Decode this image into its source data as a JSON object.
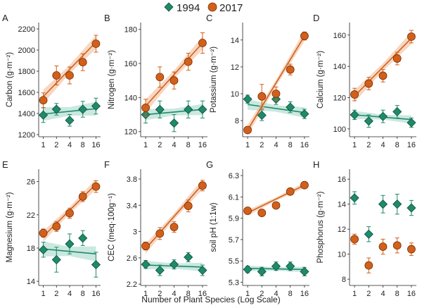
{
  "legend": {
    "items": [
      {
        "label": "1994",
        "color": "#1e8a6a",
        "marker": "diamond"
      },
      {
        "label": "2017",
        "color": "#d2601a",
        "marker": "circle"
      }
    ]
  },
  "x_axis_title": "Number of Plant Species (Log Scale)",
  "colors": {
    "s1994": "#1e8a6a",
    "s2017": "#d2601a",
    "band1994": "#9fd5c4",
    "band2017": "#f0b78f"
  },
  "chart_data": [
    {
      "type": "scatter",
      "panel": "A",
      "ylabel": "Carbon (g·m⁻²)",
      "x": [
        1,
        2,
        4,
        8,
        16
      ],
      "xticks": [
        "1",
        "2",
        "4",
        "8",
        "16"
      ],
      "ylim": [
        1180,
        2260
      ],
      "yticks": [
        1200,
        1400,
        1600,
        1800,
        2000,
        2200
      ],
      "series": [
        {
          "name": "1994",
          "values": [
            1385,
            1440,
            1335,
            1440,
            1470
          ],
          "err": [
            70,
            55,
            55,
            75,
            75
          ],
          "fit": [
            1395,
            1445
          ],
          "ci": 50
        },
        {
          "name": "2017",
          "values": [
            1525,
            1760,
            1760,
            1885,
            2060
          ],
          "err": [
            70,
            90,
            80,
            80,
            80
          ],
          "fit": [
            1560,
            2075
          ],
          "ci": 50
        }
      ]
    },
    {
      "type": "scatter",
      "panel": "B",
      "ylabel": "Nitrogen (g·m⁻²)",
      "x": [
        1,
        2,
        4,
        8,
        16
      ],
      "xticks": [
        "1",
        "2",
        "4",
        "8",
        "16"
      ],
      "ylim": [
        117,
        184
      ],
      "yticks": [
        120,
        140,
        160,
        180
      ],
      "series": [
        {
          "name": "1994",
          "values": [
            130,
            133,
            125,
            133,
            133
          ],
          "err": [
            5,
            5,
            5,
            5,
            5
          ],
          "fit": [
            130,
            133
          ],
          "ci": 2.5
        },
        {
          "name": "2017",
          "values": [
            134,
            152,
            150,
            161,
            172
          ],
          "err": [
            5,
            6,
            5,
            5,
            6
          ],
          "fit": [
            135,
            172
          ],
          "ci": 3
        }
      ]
    },
    {
      "type": "scatter",
      "panel": "C",
      "ylabel": "Potassium (g·m⁻²)",
      "x": [
        1,
        2,
        4,
        8,
        16
      ],
      "xticks": [
        "1",
        "2",
        "4",
        "8",
        "16"
      ],
      "ylim": [
        6.8,
        15.3
      ],
      "yticks": [
        8,
        10,
        12,
        14
      ],
      "series": [
        {
          "name": "1994",
          "values": [
            9.6,
            8.4,
            9.6,
            9.0,
            8.5
          ],
          "err": [
            0.3,
            0.4,
            0.4,
            0.4,
            0.35
          ],
          "fit": [
            9.2,
            8.6
          ],
          "ci": 0.3
        },
        {
          "name": "2017",
          "values": [
            7.3,
            9.8,
            10.0,
            11.8,
            14.3
          ],
          "err": [
            0.2,
            0.9,
            0.5,
            0.4,
            0.3
          ],
          "fit": [
            7.3,
            14.3
          ],
          "ci": 0.3
        }
      ]
    },
    {
      "type": "scatter",
      "panel": "D",
      "ylabel": "Calcium (g·m⁻²)",
      "x": [
        1,
        2,
        4,
        8,
        16
      ],
      "xticks": [
        "1",
        "2",
        "4",
        "8",
        "16"
      ],
      "ylim": [
        95,
        168
      ],
      "yticks": [
        100,
        120,
        140,
        160
      ],
      "series": [
        {
          "name": "1994",
          "values": [
            109,
            105,
            108,
            111,
            104
          ],
          "err": [
            3,
            4,
            4,
            4,
            3
          ],
          "fit": [
            109,
            106
          ],
          "ci": 2
        },
        {
          "name": "2017",
          "values": [
            122,
            129,
            134,
            145,
            159
          ],
          "err": [
            4,
            4,
            4,
            4,
            4
          ],
          "fit": [
            121,
            158
          ],
          "ci": 3
        }
      ]
    },
    {
      "type": "scatter",
      "panel": "E",
      "ylabel": "Magnesium (g·m⁻²)",
      "x": [
        1,
        2,
        4,
        8,
        16
      ],
      "xticks": [
        "1",
        "2",
        "4",
        "8",
        "16"
      ],
      "ylim": [
        13.5,
        27.5
      ],
      "yticks": [
        14,
        18,
        22,
        26
      ],
      "series": [
        {
          "name": "1994",
          "values": [
            17.8,
            16.6,
            18.5,
            19.2,
            16.0
          ],
          "err": [
            0.9,
            1.5,
            1.2,
            0.9,
            1.5
          ],
          "fit": [
            17.9,
            17.3
          ],
          "ci": 0.7
        },
        {
          "name": "2017",
          "values": [
            19.8,
            20.6,
            22.2,
            24.2,
            25.4
          ],
          "err": [
            0.5,
            0.6,
            0.6,
            0.6,
            0.7
          ],
          "fit": [
            19.4,
            25.7
          ],
          "ci": 0.5
        }
      ]
    },
    {
      "type": "scatter",
      "panel": "F",
      "ylabel": "CEC (meq·100g⁻¹)",
      "x": [
        1,
        2,
        4,
        8,
        16
      ],
      "xticks": [
        "1",
        "2",
        "4",
        "8",
        "16"
      ],
      "ylim": [
        2.18,
        3.95
      ],
      "yticks": [
        2.2,
        2.6,
        3.0,
        3.4,
        3.8
      ],
      "series": [
        {
          "name": "1994",
          "values": [
            2.5,
            2.41,
            2.5,
            2.61,
            2.41
          ],
          "err": [
            0.06,
            0.08,
            0.07,
            0.07,
            0.08
          ],
          "fit": [
            2.49,
            2.46
          ],
          "ci": 0.05
        },
        {
          "name": "2017",
          "values": [
            2.78,
            2.97,
            3.07,
            3.39,
            3.7
          ],
          "err": [
            0.06,
            0.09,
            0.08,
            0.09,
            0.08
          ],
          "fit": [
            2.74,
            3.72
          ],
          "ci": 0.06
        }
      ]
    },
    {
      "type": "scatter",
      "panel": "G",
      "ylabel": "soil pH (1:1w)",
      "x": [
        1,
        2,
        4,
        8,
        16
      ],
      "xticks": [
        "1",
        "2",
        "4",
        "8",
        "16"
      ],
      "ylim": [
        5.27,
        6.36
      ],
      "yticks": [
        5.3,
        5.5,
        5.7,
        5.9,
        6.1,
        6.3
      ],
      "series": [
        {
          "name": "1994",
          "values": [
            5.42,
            5.4,
            5.45,
            5.45,
            5.4
          ],
          "err": [
            0.03,
            0.04,
            0.04,
            0.04,
            0.04
          ],
          "fit": [
            5.43,
            5.42
          ],
          "ci": 0.02
        },
        {
          "name": "2017",
          "values": [
            5.97,
            5.95,
            6.02,
            6.15,
            6.21
          ],
          "err": [
            0.02,
            0.03,
            0.02,
            0.02,
            0.02
          ],
          "fit": [
            5.95,
            6.21
          ],
          "ci": 0.02
        }
      ]
    },
    {
      "type": "scatter",
      "panel": "H",
      "ylabel": "Phosphorus (g·m⁻²)",
      "x": [
        1,
        2,
        4,
        8,
        16
      ],
      "xticks": [
        "1",
        "2",
        "4",
        "8",
        "16"
      ],
      "ylim": [
        7.5,
        16.8
      ],
      "yticks": [
        8,
        10,
        12,
        14,
        16
      ],
      "series": [
        {
          "name": "1994",
          "values": [
            14.5,
            11.6,
            14.0,
            14.0,
            13.7
          ],
          "err": [
            0.5,
            0.6,
            0.7,
            0.8,
            0.6
          ],
          "fit": null,
          "ci": 0
        },
        {
          "name": "2017",
          "values": [
            11.2,
            9.1,
            10.6,
            10.7,
            10.4
          ],
          "err": [
            0.4,
            0.6,
            0.6,
            0.6,
            0.5
          ],
          "fit": null,
          "ci": 0
        }
      ]
    }
  ]
}
